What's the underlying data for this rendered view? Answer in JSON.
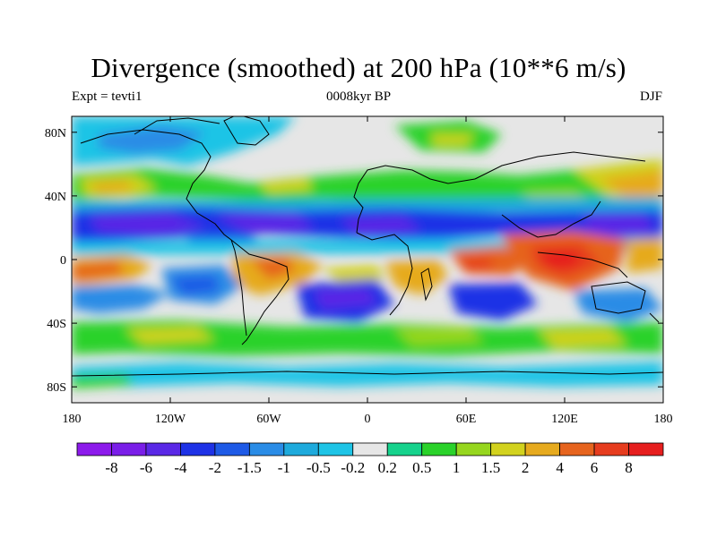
{
  "title": "Divergence (smoothed) at 200 hPa (10**6 m/s)",
  "subtitle_left": "Expt = tevti1",
  "subtitle_center": "0008kyr BP",
  "subtitle_right": "DJF",
  "lat_axis": {
    "labels": [
      "80N",
      "40N",
      "0",
      "40S",
      "80S"
    ],
    "values": [
      80,
      40,
      0,
      -40,
      -80
    ],
    "range": [
      -90,
      90
    ]
  },
  "lon_axis": {
    "labels": [
      "180",
      "120W",
      "60W",
      "0",
      "60E",
      "120E",
      "180"
    ],
    "values": [
      -180,
      -120,
      -60,
      0,
      60,
      120,
      180
    ],
    "range": [
      -180,
      180
    ]
  },
  "colorbar": {
    "labels": [
      "-8",
      "-6",
      "-4",
      "-2",
      "-1.5",
      "-1",
      "-0.5",
      "-0.2",
      "0.2",
      "0.5",
      "1",
      "1.5",
      "2",
      "4",
      "6",
      "8"
    ],
    "colors": [
      "#8c1aeb",
      "#7a1ee8",
      "#5a28e6",
      "#1e32e6",
      "#1e5ae6",
      "#2a8ce6",
      "#1eaadc",
      "#1ec4e6",
      "#e6e6e6",
      "#16d28c",
      "#2ad22a",
      "#96d61e",
      "#d2d21e",
      "#e6aa1e",
      "#e6641e",
      "#e63c1e",
      "#e61e1e"
    ]
  }
}
